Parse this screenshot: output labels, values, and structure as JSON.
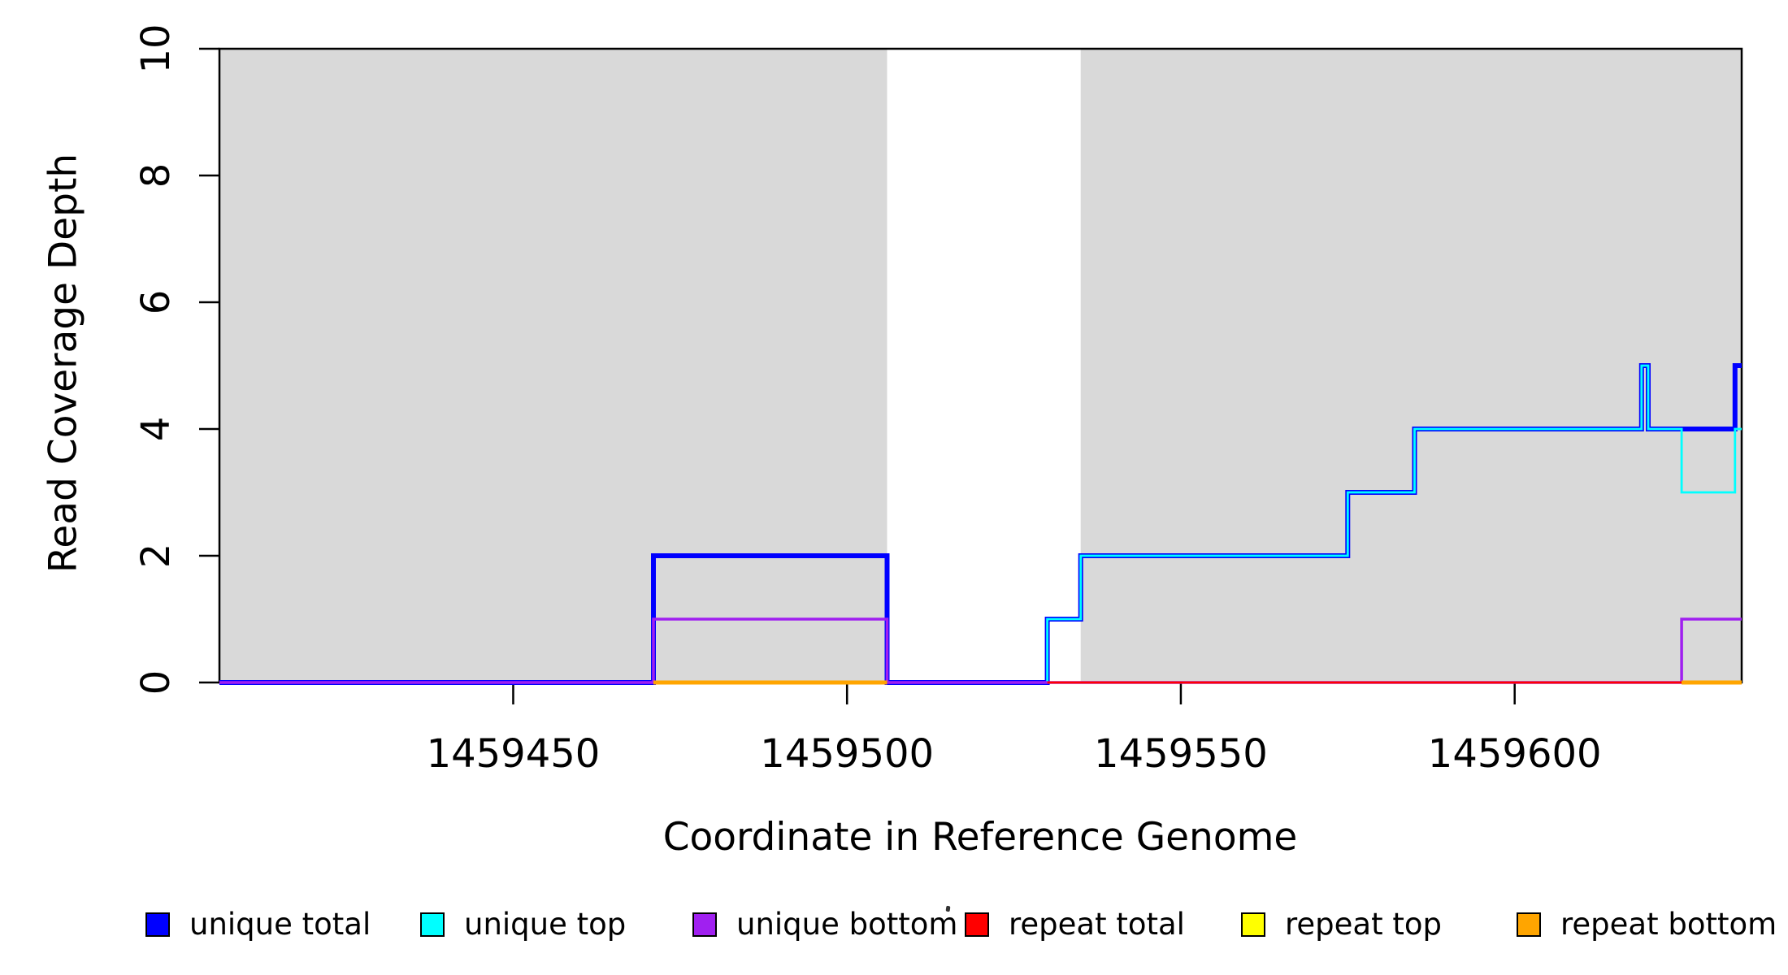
{
  "chart_data": {
    "type": "line",
    "subtype": "step-coverage",
    "title": "",
    "xlabel": "Coordinate in Reference Genome",
    "ylabel": "Read Coverage Depth",
    "xlim": [
      1459406,
      1459634
    ],
    "ylim": [
      0,
      10
    ],
    "x_ticks": [
      "1459450",
      "1459500",
      "1459550",
      "1459600"
    ],
    "y_ticks": [
      "0",
      "2",
      "4",
      "6",
      "8",
      "10"
    ],
    "grid": false,
    "legend_position": "bottom",
    "background_regions": {
      "color": "#D9D9D9",
      "x_ranges": [
        [
          1459406,
          1459506
        ],
        [
          1459535,
          1459634
        ]
      ]
    },
    "series": [
      {
        "name": "unique total",
        "color": "#0000FF",
        "line_width": 6,
        "paths": [
          [
            [
              1459406,
              0
            ],
            [
              1459471,
              0
            ],
            [
              1459471,
              2
            ],
            [
              1459506,
              2
            ],
            [
              1459506,
              0
            ],
            [
              1459530,
              0
            ],
            [
              1459530,
              1
            ],
            [
              1459535,
              1
            ],
            [
              1459535,
              2
            ],
            [
              1459575,
              2
            ],
            [
              1459575,
              3
            ],
            [
              1459585,
              3
            ],
            [
              1459585,
              4
            ],
            [
              1459619,
              4
            ],
            [
              1459619,
              5
            ],
            [
              1459620,
              5
            ],
            [
              1459620,
              4
            ],
            [
              1459633,
              4
            ],
            [
              1459633,
              5
            ],
            [
              1459634,
              5
            ]
          ]
        ]
      },
      {
        "name": "unique top",
        "color": "#00FFFF",
        "line_width": 2.8,
        "paths": [
          [
            [
              1459406,
              0
            ],
            [
              1459471,
              0
            ],
            [
              1459471,
              1
            ],
            [
              1459506,
              1
            ],
            [
              1459506,
              0
            ],
            [
              1459530,
              0
            ],
            [
              1459530,
              1
            ],
            [
              1459535,
              1
            ],
            [
              1459535,
              2
            ],
            [
              1459575,
              2
            ],
            [
              1459575,
              3
            ],
            [
              1459585,
              3
            ],
            [
              1459585,
              4
            ],
            [
              1459619,
              4
            ],
            [
              1459619,
              5
            ],
            [
              1459620,
              5
            ],
            [
              1459620,
              4
            ],
            [
              1459625,
              4
            ],
            [
              1459625,
              3
            ],
            [
              1459633,
              3
            ],
            [
              1459633,
              4
            ],
            [
              1459634,
              4
            ]
          ]
        ]
      },
      {
        "name": "unique bottom",
        "color": "#A020F0",
        "line_width": 3.5,
        "paths": [
          [
            [
              1459406,
              0
            ],
            [
              1459471,
              0
            ],
            [
              1459471,
              1
            ],
            [
              1459506,
              1
            ],
            [
              1459506,
              0
            ],
            [
              1459625,
              0
            ],
            [
              1459625,
              1
            ],
            [
              1459634,
              1
            ]
          ]
        ]
      },
      {
        "name": "repeat total",
        "color": "#FF0000",
        "line_width": 2.8,
        "paths": [
          [
            [
              1459471,
              0
            ],
            [
              1459506,
              0
            ]
          ],
          [
            [
              1459530,
              0
            ],
            [
              1459634,
              0
            ]
          ]
        ]
      },
      {
        "name": "repeat top",
        "color": "#FFFF00",
        "line_width": 2.5,
        "paths": [
          [
            [
              1459471,
              0
            ],
            [
              1459506,
              0
            ]
          ],
          [
            [
              1459625,
              0
            ],
            [
              1459634,
              0
            ]
          ]
        ]
      },
      {
        "name": "repeat bottom",
        "color": "#FFA500",
        "line_width": 5,
        "paths": [
          [
            [
              1459471,
              0
            ],
            [
              1459506,
              0
            ]
          ],
          [
            [
              1459625,
              0
            ],
            [
              1459634,
              0
            ]
          ]
        ]
      }
    ]
  },
  "legend": {
    "items": [
      {
        "label": "unique total",
        "color": "#0000FF"
      },
      {
        "label": "unique top",
        "color": "#00FFFF"
      },
      {
        "label": "unique bottom",
        "color": "#A020F0"
      },
      {
        "label": "repeat total",
        "color": "#FF0000"
      },
      {
        "label": "repeat top",
        "color": "#FFFF00"
      },
      {
        "label": "repeat bottom",
        "color": "#FFA500"
      }
    ]
  },
  "colors": {
    "shading": "#D9D9D9",
    "axis": "#000000",
    "background": "#FFFFFF"
  }
}
